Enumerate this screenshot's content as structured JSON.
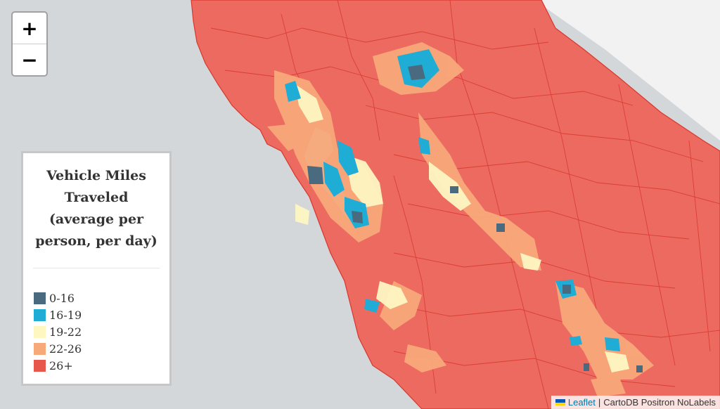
{
  "map": {
    "zoom_in_label": "+",
    "zoom_out_label": "−"
  },
  "legend": {
    "title_lines": [
      "Vehicle Miles",
      "Traveled",
      "(average per",
      "person, per day)"
    ],
    "items": [
      {
        "label": "0-16",
        "color": "#4a6a80"
      },
      {
        "label": "16-19",
        "color": "#1fadd6"
      },
      {
        "label": "19-22",
        "color": "#fef7c2"
      },
      {
        "label": "22-26",
        "color": "#f8a97a"
      },
      {
        "label": "26+",
        "color": "#e8574c"
      }
    ]
  },
  "attribution": {
    "leaflet_label": "Leaflet",
    "separator": "|",
    "basemap_label": "CartoDB Positron NoLabels"
  },
  "colors": {
    "water": "#d4d7da",
    "land_outside": "#f2f2f2",
    "region_fill": "#ec6a60",
    "region_stroke": "#d8372c"
  }
}
